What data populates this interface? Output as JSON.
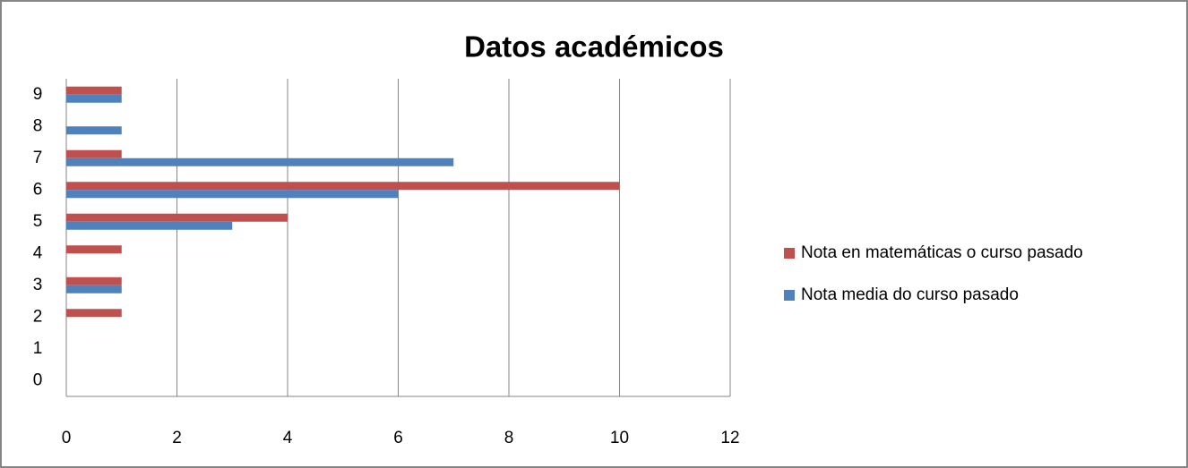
{
  "chart_data": {
    "type": "hbar",
    "title": "Datos académicos",
    "categories": [
      "0",
      "1",
      "2",
      "3",
      "4",
      "5",
      "6",
      "7",
      "8",
      "9"
    ],
    "series": [
      {
        "name": "Nota en matemáticas o curso pasado",
        "color": "#c0504d",
        "values": [
          0,
          0,
          1,
          1,
          1,
          4,
          10,
          1,
          0,
          1
        ]
      },
      {
        "name": "Nota media do curso pasado",
        "color": "#4f81bd",
        "values": [
          0,
          0,
          0,
          1,
          0,
          3,
          6,
          7,
          1,
          1
        ]
      }
    ],
    "xlim": [
      0,
      12
    ],
    "xticks": [
      0,
      2,
      4,
      6,
      8,
      10,
      12
    ],
    "grid": true,
    "legend": "right"
  }
}
